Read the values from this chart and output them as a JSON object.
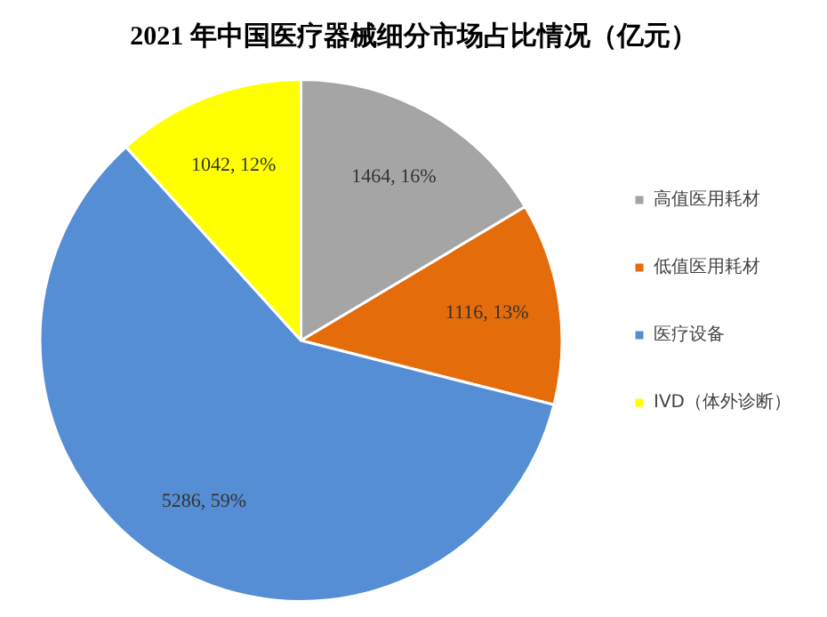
{
  "chart_data": {
    "type": "pie",
    "title": "2021 年中国医疗器械细分市场占比情况（亿元）",
    "categories": [
      "高值医用耗材",
      "低值医用耗材",
      "医疗设备",
      "IVD（体外诊断）"
    ],
    "values": [
      1464,
      1116,
      5286,
      1042
    ],
    "colors": [
      "#a5a5a5",
      "#e46c0a",
      "#558ed5",
      "#ffff00"
    ],
    "value_labels": [
      "1464, 16%",
      "1116, 13%",
      "5286, 59%",
      "1042, 12%"
    ],
    "legend": "right"
  }
}
